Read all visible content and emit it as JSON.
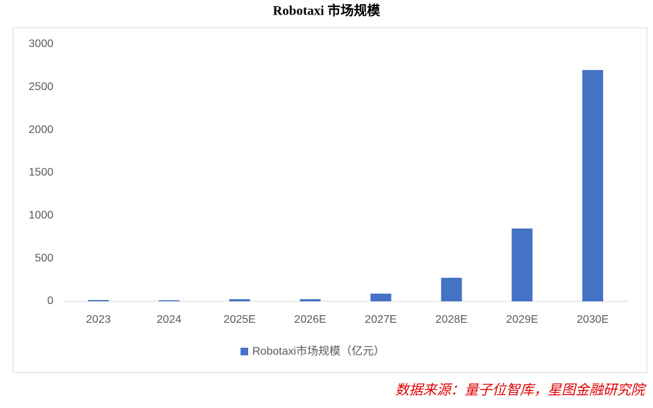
{
  "chart_data": {
    "type": "bar",
    "title": "Robotaxi 市场规模",
    "categories": [
      "2023",
      "2024",
      "2025E",
      "2026E",
      "2027E",
      "2028E",
      "2029E",
      "2030E"
    ],
    "series": [
      {
        "name": "Robotaxi市场规模（亿元）",
        "color": "#4472c4",
        "values": [
          15,
          12,
          25,
          25,
          90,
          275,
          850,
          2700
        ]
      }
    ],
    "ylim": [
      0,
      3000
    ],
    "yticks": [
      0,
      500,
      1000,
      1500,
      2000,
      2500,
      3000
    ],
    "grid": false,
    "legend": "bottom",
    "source": "数据来源：量子位智库，星图金融研究院"
  }
}
